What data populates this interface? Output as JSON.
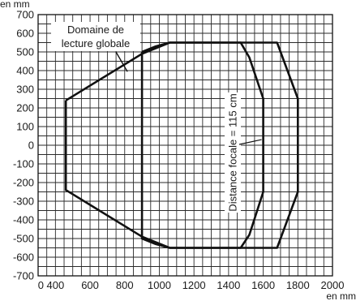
{
  "chart_data": {
    "type": "line",
    "y_unit": "en mm",
    "x_unit": "en mm",
    "xlim": [
      300,
      2000
    ],
    "ylim": [
      -700,
      700
    ],
    "x_ticks": [
      400,
      600,
      800,
      1000,
      1200,
      1400,
      1600,
      1800,
      2000
    ],
    "x_tick_labels": [
      "0 400",
      "600",
      "800",
      "1000",
      "1200",
      "1400",
      "1600",
      "1800",
      "2000"
    ],
    "y_ticks": [
      700,
      600,
      500,
      400,
      300,
      200,
      100,
      0,
      -100,
      -200,
      -300,
      -400,
      -500,
      -600,
      -700
    ],
    "y_tick_labels": [
      "700",
      "600",
      "500",
      "400",
      "300",
      "200",
      "100",
      "0",
      "-100",
      "-200",
      "-300",
      "-400",
      "-500",
      "-600",
      "-700"
    ],
    "grid": true,
    "series": [
      {
        "points": [
          [
            460,
            240
          ],
          [
            460,
            -240
          ],
          [
            900,
            -490
          ],
          [
            1060,
            -550
          ],
          [
            1680,
            -550
          ],
          [
            1800,
            -250
          ],
          [
            1800,
            250
          ],
          [
            1680,
            550
          ],
          [
            1060,
            550
          ],
          [
            900,
            490
          ],
          [
            460,
            240
          ]
        ]
      },
      {
        "points": [
          [
            900,
            500
          ],
          [
            900,
            -500
          ],
          [
            980,
            -530
          ],
          [
            1060,
            -550
          ],
          [
            1470,
            -550
          ],
          [
            1520,
            -480
          ],
          [
            1600,
            -250
          ],
          [
            1600,
            250
          ],
          [
            1520,
            470
          ],
          [
            1470,
            550
          ],
          [
            1060,
            550
          ],
          [
            980,
            530
          ],
          [
            900,
            500
          ]
        ]
      }
    ],
    "annotations": [
      {
        "lines": [
          "Domaine de",
          "lecture globale"
        ],
        "target": [
          900,
          490
        ]
      },
      {
        "text": "Distance focale = 115 cm",
        "target": [
          1600,
          30
        ]
      }
    ]
  }
}
